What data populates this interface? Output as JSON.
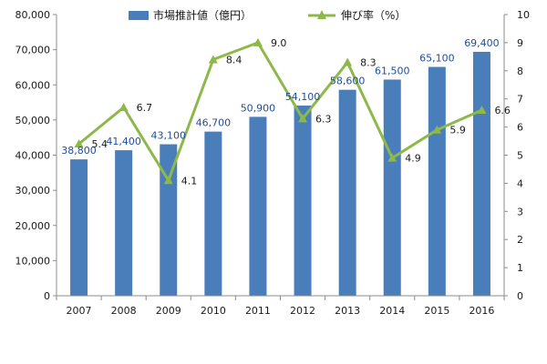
{
  "chart_data": {
    "type": "bar",
    "categories": [
      "2007",
      "2008",
      "2009",
      "2010",
      "2011",
      "2012",
      "2013",
      "2014",
      "2015",
      "2016"
    ],
    "series": [
      {
        "name": "市場推計値（億円）",
        "type": "bar",
        "axis": "left",
        "color": "#4a7ebb",
        "values": [
          38800,
          41400,
          43100,
          46700,
          50900,
          54100,
          58600,
          61500,
          65100,
          69400
        ],
        "labels": [
          "38,800",
          "41,400",
          "43,100",
          "46,700",
          "50,900",
          "54,100",
          "58,600",
          "61,500",
          "65,100",
          "69,400"
        ]
      },
      {
        "name": "伸び率（%）",
        "type": "line",
        "axis": "right",
        "color": "#8db84a",
        "marker": "triangle",
        "values": [
          5.4,
          6.7,
          4.1,
          8.4,
          9.0,
          6.3,
          8.3,
          4.9,
          5.9,
          6.6
        ],
        "labels": [
          "5.4",
          "6.7",
          "4.1",
          "8.4",
          "9.0",
          "6.3",
          "8.3",
          "4.9",
          "5.9",
          "6.6"
        ]
      }
    ],
    "y_left": {
      "ylim": [
        0,
        80000
      ],
      "ticks": [
        0,
        10000,
        20000,
        30000,
        40000,
        50000,
        60000,
        70000,
        80000
      ],
      "tick_labels": [
        "0",
        "10,000",
        "20,000",
        "30,000",
        "40,000",
        "50,000",
        "60,000",
        "70,000",
        "80,000"
      ]
    },
    "y_right": {
      "ylim": [
        0,
        10
      ],
      "ticks": [
        0,
        1,
        2,
        3,
        4,
        5,
        6,
        7,
        8,
        9,
        10
      ],
      "tick_labels": [
        "0",
        "1",
        "2",
        "3",
        "4",
        "5",
        "6",
        "7",
        "8",
        "9",
        "10"
      ]
    },
    "grid": false,
    "legend": "top-center"
  }
}
